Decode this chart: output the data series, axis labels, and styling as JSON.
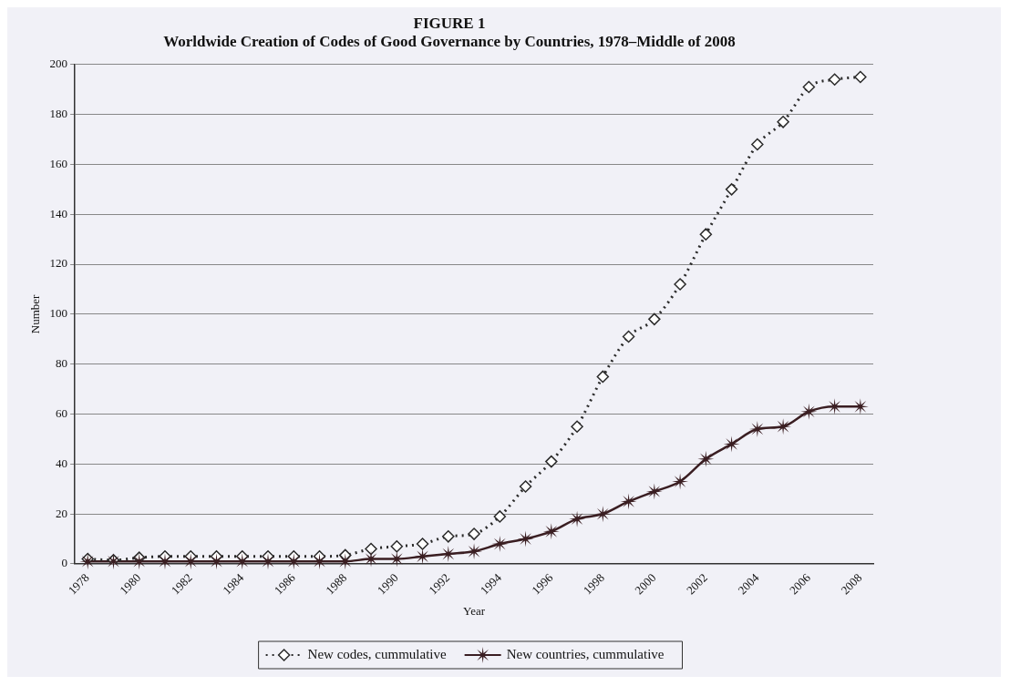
{
  "chart_data": {
    "type": "line",
    "title": "FIGURE 1",
    "subtitle": "Worldwide Creation of Codes of Good Governance by Countries, 1978–Middle of 2008",
    "xlabel": "Year",
    "ylabel": "Number",
    "categories": [
      "1978",
      null,
      "1980",
      null,
      "1982",
      null,
      "1984",
      null,
      "1986",
      null,
      "1988",
      null,
      "1990",
      null,
      "1992",
      null,
      "1994",
      null,
      "1996",
      null,
      "1998",
      null,
      "2000",
      null,
      "2002",
      null,
      "2004",
      null,
      "2006",
      null,
      "2008"
    ],
    "series": [
      {
        "name": "New codes, cummulative",
        "color": "#2a2a2a",
        "marker": "diamond",
        "line_style": "dotted",
        "values": [
          2,
          1.5,
          2.5,
          3,
          3,
          3,
          3,
          3,
          3,
          3,
          3.5,
          6,
          7,
          8,
          11,
          12,
          19,
          31,
          41,
          55,
          75,
          91,
          98,
          112,
          132,
          150,
          168,
          177,
          191,
          194,
          195
        ]
      },
      {
        "name": "New countries, cummulative",
        "color": "#3a1e22",
        "marker": "star",
        "line_style": "solid",
        "values": [
          1,
          1,
          1,
          1,
          1,
          1,
          1,
          1,
          1,
          1,
          1,
          2,
          2,
          3,
          4,
          5,
          8,
          10,
          13,
          18,
          20,
          25,
          29,
          33,
          42,
          48,
          54,
          55,
          61,
          63,
          63
        ]
      }
    ],
    "ylim": [
      0,
      200
    ],
    "yticks": [
      0,
      20,
      40,
      60,
      80,
      100,
      120,
      140,
      160,
      180,
      200
    ],
    "grid": "y",
    "legend": "bottom"
  }
}
